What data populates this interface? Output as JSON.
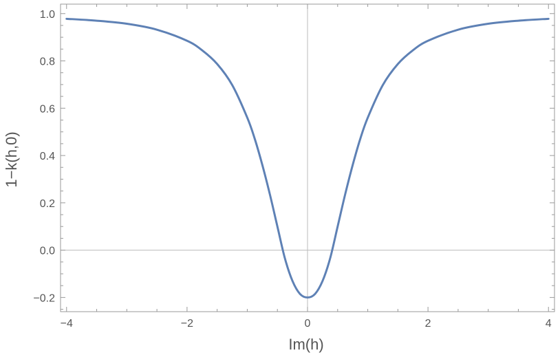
{
  "chart_data": {
    "type": "line",
    "title": "",
    "xlabel": "Im(h)",
    "ylabel": "1−k(h,0)",
    "xlim": [
      -4.1,
      4.1
    ],
    "ylim": [
      -0.26,
      1.04
    ],
    "x_ticks": [
      -4,
      -2,
      0,
      2,
      4
    ],
    "x_tick_labels": [
      "−4",
      "−2",
      "0",
      "2",
      "4"
    ],
    "y_ticks": [
      -0.2,
      0.0,
      0.2,
      0.4,
      0.6,
      0.8,
      1.0
    ],
    "y_tick_labels": [
      "−0.2",
      "0.0",
      "0.2",
      "0.4",
      "0.6",
      "0.8",
      "1.0"
    ],
    "grid": false,
    "frame": true,
    "series": [
      {
        "color": "#5e81b5",
        "x": [
          -4,
          -3.5,
          -3,
          -2.5,
          -2,
          -1.75,
          -1.5,
          -1.25,
          -1,
          -0.875,
          -0.75,
          -0.625,
          -0.5,
          -0.375,
          -0.25,
          -0.125,
          0,
          0.125,
          0.25,
          0.375,
          0.5,
          0.625,
          0.75,
          0.875,
          1,
          1.25,
          1.5,
          1.75,
          2,
          2.5,
          3,
          3.5,
          4
        ],
        "y": [
          0.978,
          0.97,
          0.957,
          0.932,
          0.885,
          0.845,
          0.787,
          0.698,
          0.56,
          0.47,
          0.36,
          0.236,
          0.1,
          -0.035,
          -0.13,
          -0.185,
          -0.2,
          -0.185,
          -0.13,
          -0.035,
          0.1,
          0.236,
          0.36,
          0.47,
          0.56,
          0.698,
          0.787,
          0.845,
          0.885,
          0.932,
          0.957,
          0.97,
          0.978
        ]
      }
    ]
  }
}
